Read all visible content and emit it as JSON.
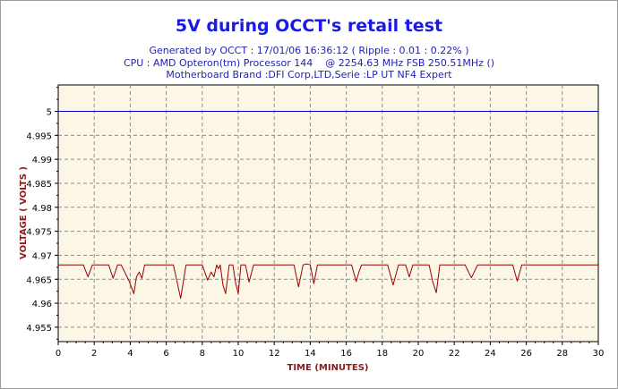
{
  "chart_data": {
    "type": "line",
    "title": "5V during OCCT's retail test",
    "subtitle_lines": [
      "Generated by OCCT : 17/01/06 16:36:12 ( Ripple : 0.01 : 0.22% )",
      "CPU : AMD Opteron(tm) Processor 144    @ 2254.63 MHz FSB 250.51MHz ()",
      "Motherboard Brand :DFI Corp,LTD,Serie :LP UT NF4 Expert"
    ],
    "xlabel": "TIME (MINUTES)",
    "ylabel": "VOLTAGE ( VOLTS )",
    "xlim": [
      0,
      30
    ],
    "ylim": [
      4.952,
      5.0055
    ],
    "x_ticks": [
      0,
      2,
      4,
      6,
      8,
      10,
      12,
      14,
      16,
      18,
      20,
      22,
      24,
      26,
      28,
      30
    ],
    "y_ticks": [
      4.955,
      4.96,
      4.965,
      4.97,
      4.975,
      4.98,
      4.985,
      4.99,
      4.995,
      5
    ],
    "y_tick_labels": [
      "4.955",
      "4.96",
      "4.965",
      "4.97",
      "4.975",
      "4.98",
      "4.985",
      "4.99",
      "4.995",
      "5"
    ],
    "grid": true,
    "series": [
      {
        "color": "#0000cc",
        "x": [
          0,
          30
        ],
        "y": [
          5.0,
          5.0
        ]
      },
      {
        "color": "#990000",
        "x": [
          0,
          1.4,
          1.65,
          1.9,
          2.8,
          3.05,
          3.3,
          3.5,
          3.95,
          4.2,
          4.35,
          4.5,
          4.65,
          4.8,
          5.0,
          5.1,
          6.4,
          6.8,
          7.1,
          8.0,
          8.3,
          8.5,
          8.65,
          8.8,
          8.9,
          9.0,
          9.15,
          9.3,
          9.5,
          9.7,
          9.85,
          10.0,
          10.15,
          10.4,
          10.6,
          10.85,
          11.05,
          11.3,
          13.1,
          13.35,
          13.6,
          13.8,
          14.0,
          14.2,
          14.4,
          16.3,
          16.55,
          16.7,
          16.85,
          17.1,
          17.4,
          18.3,
          18.6,
          18.9,
          19.3,
          19.5,
          19.7,
          19.9,
          20.6,
          20.8,
          21.0,
          21.2,
          21.5,
          22.6,
          22.95,
          23.3,
          25.25,
          25.5,
          25.75,
          30
        ],
        "y": [
          4.968,
          4.968,
          4.9655,
          4.968,
          4.968,
          4.9652,
          4.968,
          4.968,
          4.9645,
          4.962,
          4.9655,
          4.9665,
          4.9652,
          4.968,
          4.968,
          4.968,
          4.968,
          4.961,
          4.968,
          4.968,
          4.9648,
          4.9665,
          4.9655,
          4.968,
          4.9672,
          4.968,
          4.9638,
          4.962,
          4.968,
          4.968,
          4.9643,
          4.962,
          4.968,
          4.968,
          4.9644,
          4.968,
          4.968,
          4.968,
          4.968,
          4.9634,
          4.968,
          4.9682,
          4.968,
          4.9641,
          4.968,
          4.968,
          4.9645,
          4.9665,
          4.968,
          4.968,
          4.968,
          4.968,
          4.9638,
          4.968,
          4.968,
          4.9655,
          4.968,
          4.968,
          4.968,
          4.9645,
          4.9622,
          4.968,
          4.968,
          4.968,
          4.9653,
          4.968,
          4.968,
          4.9646,
          4.968,
          4.968
        ]
      }
    ]
  }
}
